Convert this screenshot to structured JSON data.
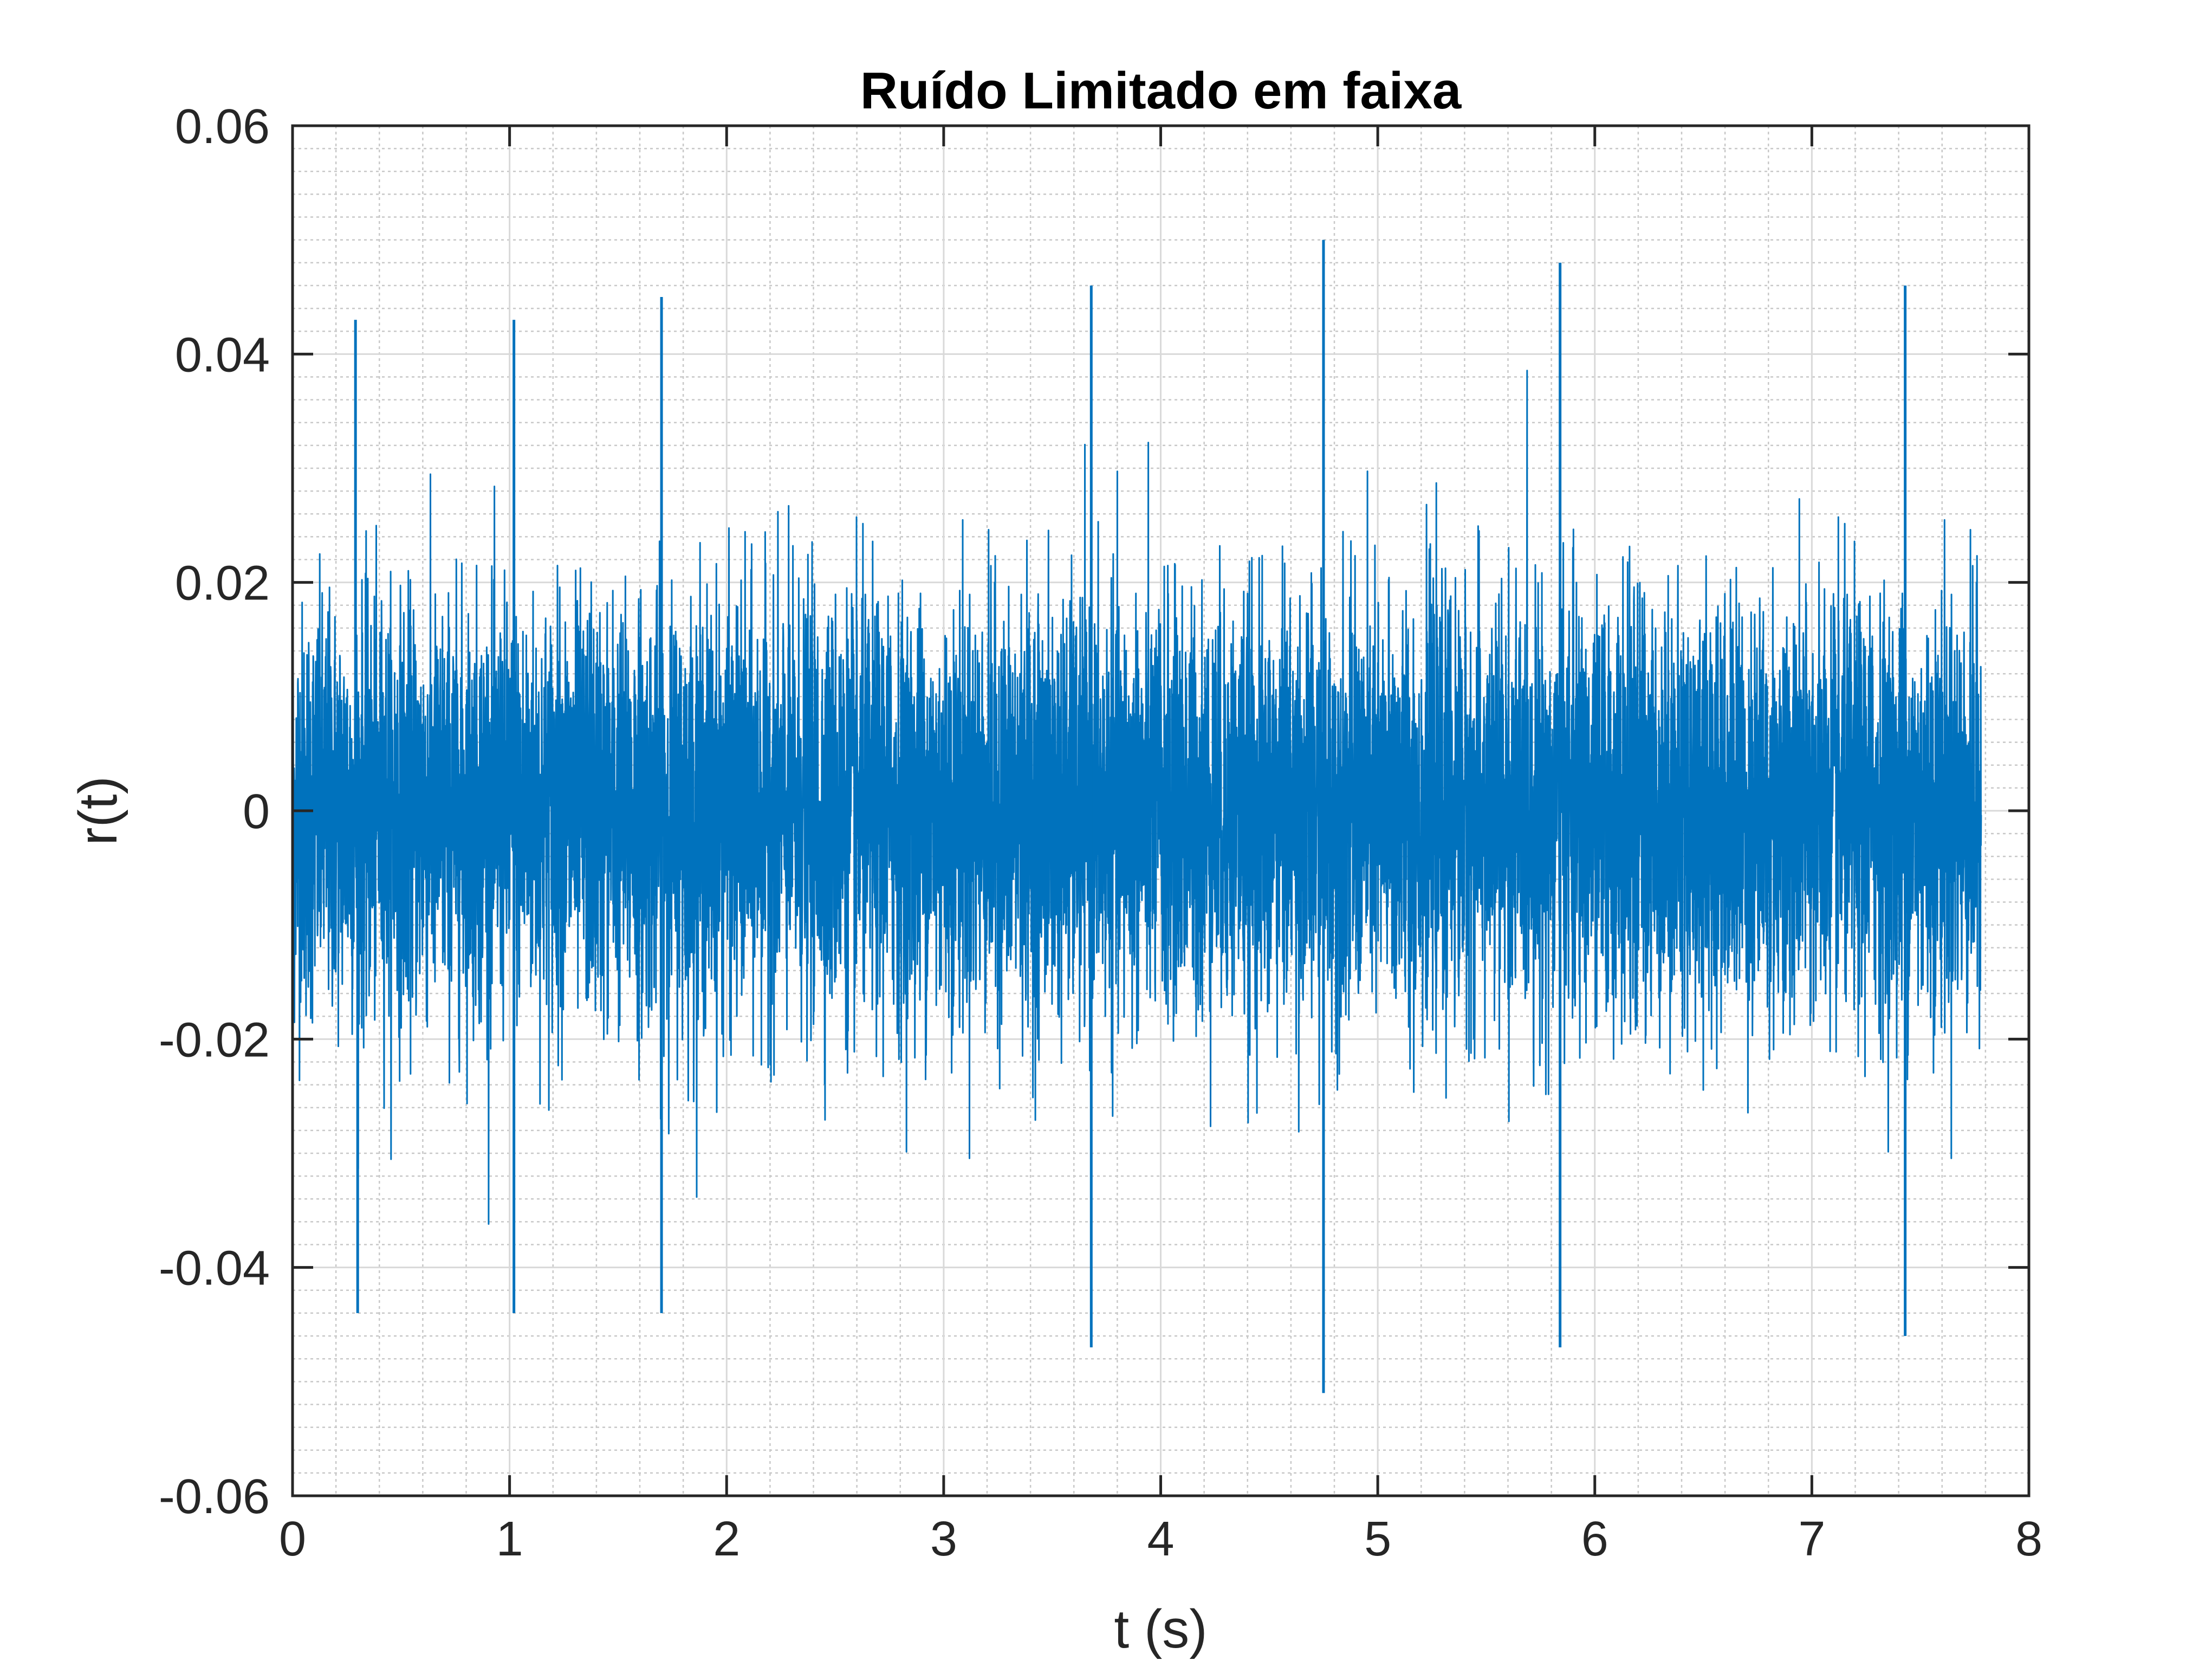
{
  "chart_data": {
    "type": "line",
    "title": "Ruído Limitado em faixa",
    "xlabel": "t (s)",
    "ylabel": "r(t)",
    "xlim": [
      0,
      8
    ],
    "ylim": [
      -0.06,
      0.06
    ],
    "xticks": [
      0,
      1,
      2,
      3,
      4,
      5,
      6,
      7,
      8
    ],
    "xtick_labels": [
      "0",
      "1",
      "2",
      "3",
      "4",
      "5",
      "6",
      "7",
      "8"
    ],
    "yticks": [
      -0.06,
      -0.04,
      -0.02,
      0,
      0.02,
      0.04,
      0.06
    ],
    "ytick_labels": [
      "-0.06",
      "-0.04",
      "-0.02",
      "0",
      "0.02",
      "0.04",
      "0.06"
    ],
    "grid": true,
    "minor_grid": true,
    "series": [
      {
        "color": "#0072BD",
        "t_end": 7.78,
        "typical_amplitude": 0.012,
        "max_value": 0.05,
        "min_value": -0.051,
        "notable_peaks": [
          {
            "t": 0.29,
            "value": 0.043
          },
          {
            "t": 0.3,
            "value": -0.044
          },
          {
            "t": 1.02,
            "value": 0.043
          },
          {
            "t": 1.02,
            "value": -0.044
          },
          {
            "t": 1.7,
            "value": 0.045
          },
          {
            "t": 1.7,
            "value": -0.044
          },
          {
            "t": 3.68,
            "value": 0.046
          },
          {
            "t": 3.68,
            "value": -0.047
          },
          {
            "t": 4.75,
            "value": 0.05
          },
          {
            "t": 4.75,
            "value": -0.051
          },
          {
            "t": 5.84,
            "value": 0.048
          },
          {
            "t": 5.84,
            "value": -0.047
          },
          {
            "t": 7.43,
            "value": 0.046
          },
          {
            "t": 7.43,
            "value": -0.046
          }
        ]
      }
    ]
  }
}
